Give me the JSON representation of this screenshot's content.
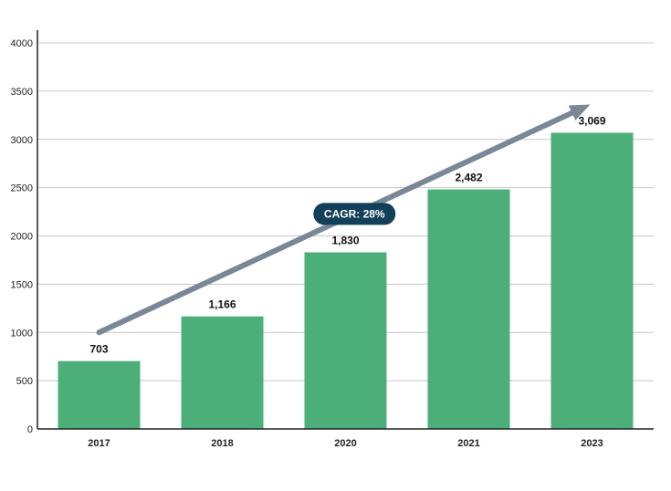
{
  "chart_data": {
    "type": "bar",
    "categories": [
      "2017",
      "2018",
      "2020",
      "2021",
      "2023"
    ],
    "values": [
      703,
      1166,
      1830,
      2482,
      3069
    ],
    "value_labels": [
      "703",
      "1,166",
      "1,830",
      "2,482",
      "3,069"
    ],
    "y_ticks": [
      "0",
      "500",
      "1000",
      "1500",
      "2000",
      "2500",
      "3000",
      "3500",
      "4000"
    ],
    "ylim": [
      0,
      4000
    ],
    "grid": true,
    "title": "",
    "xlabel": "",
    "ylabel": "",
    "annotation": {
      "text": "CAGR: 28%",
      "trend_arrow": {
        "from": {
          "x": "2017",
          "y": 1000
        },
        "to": {
          "x": "2023",
          "y": 3400
        }
      }
    }
  },
  "colors": {
    "bar": "#4caf7a",
    "grid": "#c8c8c8",
    "axis": "#222222",
    "arrow": "#7a8797",
    "badge": "#123f5a"
  }
}
